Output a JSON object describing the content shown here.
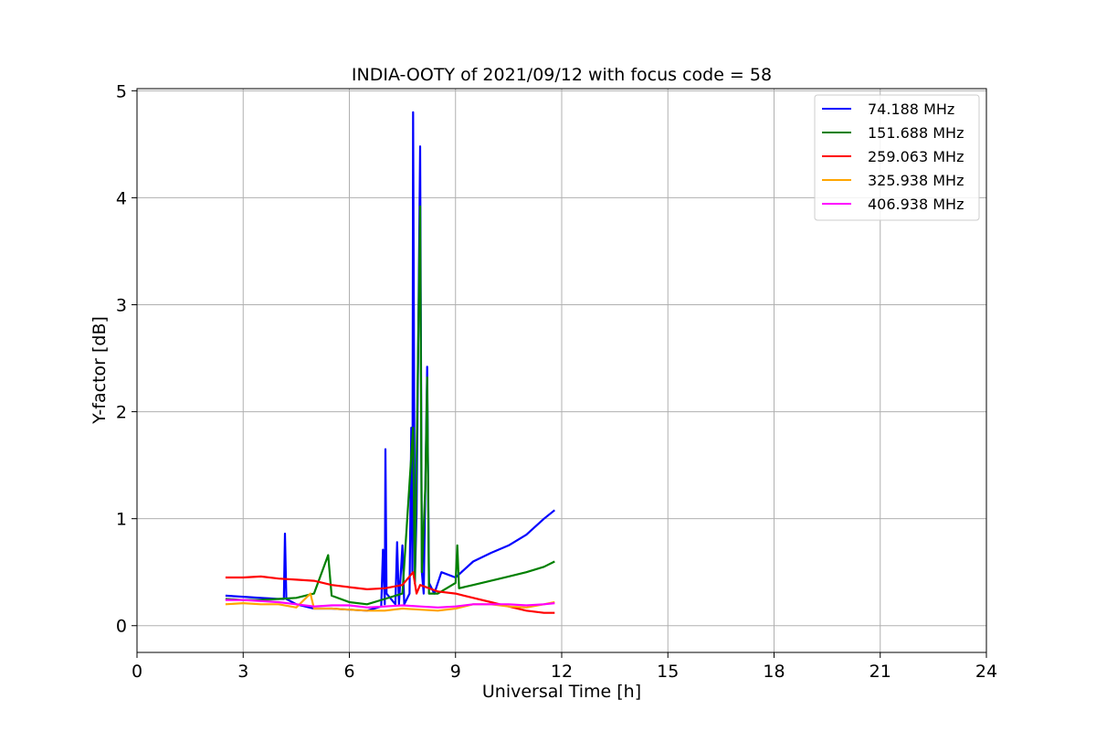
{
  "chart_data": {
    "type": "line",
    "title": "INDIA-OOTY of 2021/09/12 with focus code = 58",
    "xlabel": "Universal Time [h]",
    "ylabel": "Y-factor [dB]",
    "xlim": [
      0,
      24
    ],
    "ylim": [
      -0.25,
      5.02
    ],
    "x_ticks": [
      0,
      3,
      6,
      9,
      12,
      15,
      18,
      21,
      24
    ],
    "y_ticks": [
      0,
      1,
      2,
      3,
      4,
      5
    ],
    "grid": true,
    "legend_position": "top-right",
    "series": [
      {
        "name": " 74.188 MHz",
        "color": "#0000ff",
        "points": [
          [
            2.5,
            0.28
          ],
          [
            3.0,
            0.27
          ],
          [
            3.5,
            0.26
          ],
          [
            4.0,
            0.25
          ],
          [
            4.15,
            0.25
          ],
          [
            4.18,
            0.86
          ],
          [
            4.22,
            0.25
          ],
          [
            4.5,
            0.2
          ],
          [
            5.0,
            0.16
          ],
          [
            5.5,
            0.16
          ],
          [
            6.0,
            0.15
          ],
          [
            6.5,
            0.14
          ],
          [
            6.9,
            0.18
          ],
          [
            6.95,
            0.71
          ],
          [
            7.0,
            0.2
          ],
          [
            7.02,
            1.65
          ],
          [
            7.05,
            0.3
          ],
          [
            7.3,
            0.2
          ],
          [
            7.35,
            0.78
          ],
          [
            7.4,
            0.2
          ],
          [
            7.5,
            0.75
          ],
          [
            7.55,
            0.2
          ],
          [
            7.7,
            0.3
          ],
          [
            7.75,
            1.85
          ],
          [
            7.78,
            0.5
          ],
          [
            7.8,
            4.8
          ],
          [
            7.85,
            0.4
          ],
          [
            7.9,
            1.05
          ],
          [
            8.0,
            4.48
          ],
          [
            8.05,
            0.5
          ],
          [
            8.1,
            0.3
          ],
          [
            8.2,
            2.42
          ],
          [
            8.25,
            0.4
          ],
          [
            8.4,
            0.3
          ],
          [
            8.6,
            0.5
          ],
          [
            9.0,
            0.45
          ],
          [
            9.5,
            0.6
          ],
          [
            10.0,
            0.68
          ],
          [
            10.5,
            0.75
          ],
          [
            11.0,
            0.85
          ],
          [
            11.5,
            1.0
          ],
          [
            11.8,
            1.08
          ]
        ]
      },
      {
        "name": "151.688 MHz",
        "color": "#008000",
        "points": [
          [
            2.5,
            0.25
          ],
          [
            3.0,
            0.24
          ],
          [
            3.5,
            0.24
          ],
          [
            4.0,
            0.25
          ],
          [
            4.5,
            0.26
          ],
          [
            5.0,
            0.3
          ],
          [
            5.4,
            0.66
          ],
          [
            5.5,
            0.28
          ],
          [
            6.0,
            0.22
          ],
          [
            6.5,
            0.2
          ],
          [
            7.0,
            0.25
          ],
          [
            7.5,
            0.3
          ],
          [
            7.8,
            1.85
          ],
          [
            7.85,
            0.4
          ],
          [
            8.0,
            3.92
          ],
          [
            8.05,
            0.5
          ],
          [
            8.15,
            1.32
          ],
          [
            8.2,
            2.32
          ],
          [
            8.25,
            0.3
          ],
          [
            8.5,
            0.3
          ],
          [
            9.0,
            0.4
          ],
          [
            9.05,
            0.75
          ],
          [
            9.1,
            0.35
          ],
          [
            9.5,
            0.38
          ],
          [
            10.0,
            0.42
          ],
          [
            10.5,
            0.46
          ],
          [
            11.0,
            0.5
          ],
          [
            11.5,
            0.55
          ],
          [
            11.8,
            0.6
          ]
        ]
      },
      {
        "name": "259.063 MHz",
        "color": "#ff0000",
        "points": [
          [
            2.5,
            0.45
          ],
          [
            3.0,
            0.45
          ],
          [
            3.5,
            0.46
          ],
          [
            4.0,
            0.44
          ],
          [
            4.5,
            0.43
          ],
          [
            5.0,
            0.42
          ],
          [
            5.5,
            0.38
          ],
          [
            6.0,
            0.36
          ],
          [
            6.5,
            0.34
          ],
          [
            7.0,
            0.35
          ],
          [
            7.5,
            0.38
          ],
          [
            7.8,
            0.5
          ],
          [
            7.9,
            0.3
          ],
          [
            8.0,
            0.38
          ],
          [
            8.5,
            0.32
          ],
          [
            9.0,
            0.3
          ],
          [
            9.5,
            0.26
          ],
          [
            10.0,
            0.22
          ],
          [
            10.5,
            0.18
          ],
          [
            11.0,
            0.14
          ],
          [
            11.5,
            0.12
          ],
          [
            11.8,
            0.12
          ]
        ]
      },
      {
        "name": "325.938 MHz",
        "color": "#ffa500",
        "points": [
          [
            2.5,
            0.2
          ],
          [
            3.0,
            0.21
          ],
          [
            3.5,
            0.2
          ],
          [
            4.0,
            0.2
          ],
          [
            4.5,
            0.17
          ],
          [
            4.9,
            0.3
          ],
          [
            5.0,
            0.16
          ],
          [
            5.5,
            0.16
          ],
          [
            6.0,
            0.15
          ],
          [
            6.5,
            0.14
          ],
          [
            7.0,
            0.14
          ],
          [
            7.5,
            0.16
          ],
          [
            8.0,
            0.15
          ],
          [
            8.5,
            0.14
          ],
          [
            9.0,
            0.16
          ],
          [
            9.5,
            0.2
          ],
          [
            10.0,
            0.2
          ],
          [
            10.5,
            0.18
          ],
          [
            11.0,
            0.17
          ],
          [
            11.5,
            0.2
          ],
          [
            11.8,
            0.22
          ]
        ]
      },
      {
        "name": "406.938 MHz",
        "color": "#ff00ff",
        "points": [
          [
            2.5,
            0.24
          ],
          [
            3.0,
            0.24
          ],
          [
            3.5,
            0.23
          ],
          [
            4.0,
            0.22
          ],
          [
            4.5,
            0.2
          ],
          [
            5.0,
            0.18
          ],
          [
            5.5,
            0.19
          ],
          [
            6.0,
            0.19
          ],
          [
            6.5,
            0.17
          ],
          [
            7.0,
            0.18
          ],
          [
            7.5,
            0.19
          ],
          [
            8.0,
            0.18
          ],
          [
            8.5,
            0.17
          ],
          [
            9.0,
            0.18
          ],
          [
            9.5,
            0.2
          ],
          [
            10.0,
            0.2
          ],
          [
            10.5,
            0.2
          ],
          [
            11.0,
            0.19
          ],
          [
            11.5,
            0.2
          ],
          [
            11.8,
            0.21
          ]
        ]
      }
    ]
  }
}
